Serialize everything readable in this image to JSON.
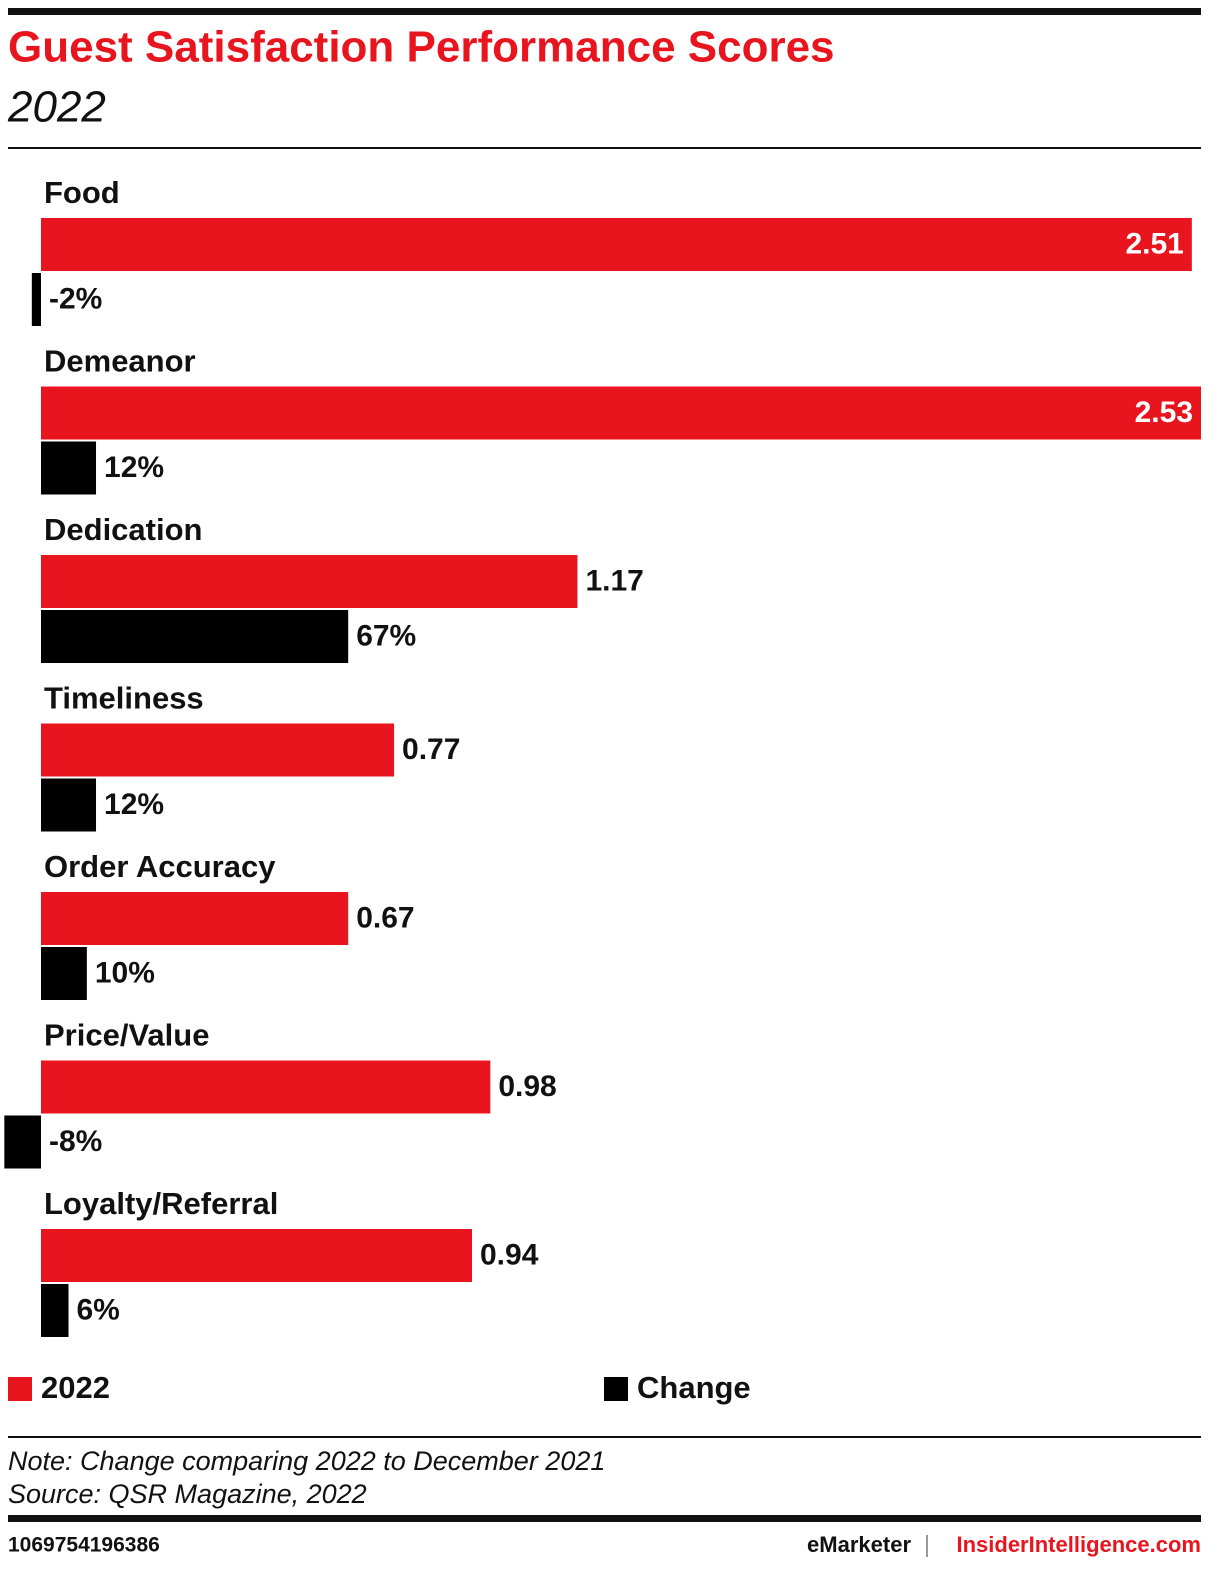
{
  "chart_data": {
    "type": "bar",
    "orientation": "horizontal",
    "title": "Guest Satisfaction Performance Scores",
    "subtitle": "2022",
    "categories": [
      "Food",
      "Demeanor",
      "Dedication",
      "Timeliness",
      "Order Accuracy",
      "Price/Value",
      "Loyalty/Referral"
    ],
    "series": [
      {
        "name": "2022",
        "color": "#e8141e",
        "values": [
          2.51,
          2.53,
          1.17,
          0.77,
          0.67,
          0.98,
          0.94
        ]
      },
      {
        "name": "Change",
        "color": "#000000",
        "values": [
          -2,
          12,
          67,
          12,
          10,
          -8,
          6
        ],
        "value_labels": [
          "-2%",
          "12%",
          "67%",
          "12%",
          "10%",
          "-8%",
          "6%"
        ]
      }
    ],
    "note": "Note: Change comparing 2022 to December 2021",
    "source": "Source: QSR Magazine, 2022",
    "chart_id": "1069754196386",
    "brand": "eMarketer",
    "brand_site": "InsiderIntelligence.com"
  }
}
